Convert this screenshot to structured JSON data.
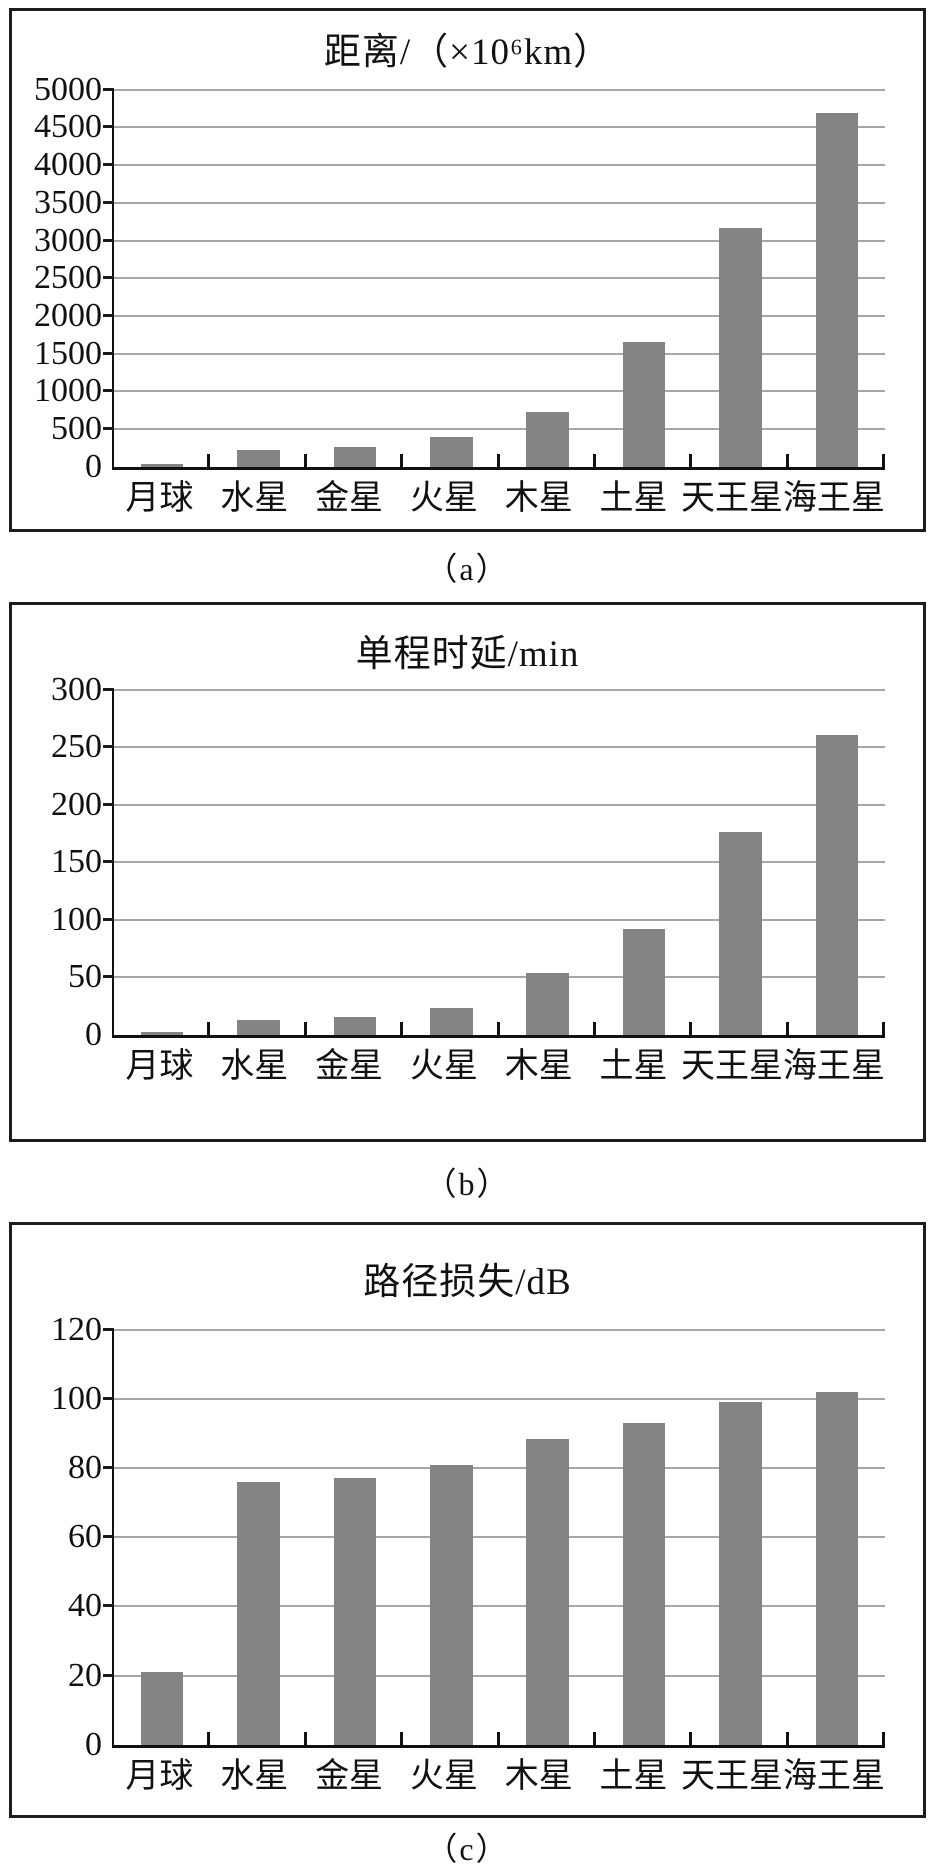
{
  "colors": {
    "bar": "#848484",
    "gridline": "#a6a6a6",
    "axis": "#111111",
    "panel_border": "#1c1c1c",
    "text": "#111111"
  },
  "chart_data": [
    {
      "type": "bar",
      "title": "距离/（×10⁶km）",
      "caption": "（a）",
      "categories": [
        "月球",
        "水星",
        "金星",
        "火星",
        "木星",
        "土星",
        "天王星",
        "海王星"
      ],
      "values": [
        25,
        220,
        260,
        400,
        720,
        1660,
        3160,
        4690
      ],
      "ylim": [
        0,
        5000
      ],
      "yticks": [
        0,
        500,
        1000,
        1500,
        2000,
        2500,
        3000,
        3500,
        4000,
        4500,
        5000
      ],
      "xlabel": "",
      "ylabel": "",
      "grid": true,
      "legend": false
    },
    {
      "type": "bar",
      "title": "单程时延/min",
      "caption": "（b）",
      "categories": [
        "月球",
        "水星",
        "金星",
        "火星",
        "木星",
        "土星",
        "天王星",
        "海王星"
      ],
      "values": [
        2,
        13,
        15,
        23,
        54,
        92,
        176,
        261
      ],
      "ylim": [
        0,
        300
      ],
      "yticks": [
        0,
        50,
        100,
        150,
        200,
        250,
        300
      ],
      "xlabel": "",
      "ylabel": "",
      "grid": true,
      "legend": false
    },
    {
      "type": "bar",
      "title": "路径损失/dB",
      "caption": "（c）",
      "categories": [
        "月球",
        "水星",
        "金星",
        "火星",
        "木星",
        "土星",
        "天王星",
        "海王星"
      ],
      "values": [
        21,
        76,
        77,
        81,
        88.5,
        93,
        99,
        102
      ],
      "ylim": [
        0,
        120
      ],
      "yticks": [
        0,
        20,
        40,
        60,
        80,
        100,
        120
      ],
      "xlabel": "",
      "ylabel": "",
      "grid": true,
      "legend": false
    }
  ]
}
